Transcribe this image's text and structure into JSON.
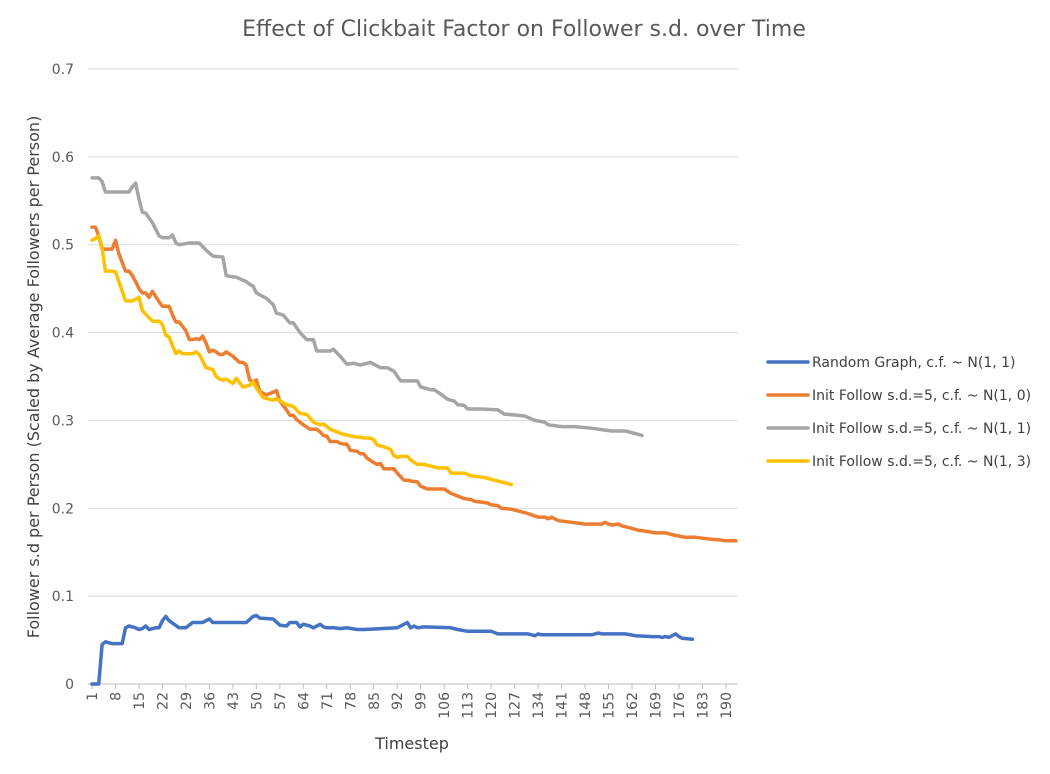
{
  "chart_data": {
    "type": "line",
    "title": "Effect of Clickbait Factor on Follower s.d. over Time",
    "xlabel": "Timestep",
    "ylabel": "Follower s.d per Person (Scaled by Average Followers per Person)",
    "xlim": [
      1,
      193
    ],
    "ylim": [
      0,
      0.7
    ],
    "yticks": [
      "0",
      "0.1",
      "0.2",
      "0.3",
      "0.4",
      "0.5",
      "0.6",
      "0.7"
    ],
    "xticks": [
      "1",
      "8",
      "15",
      "22",
      "29",
      "36",
      "43",
      "50",
      "57",
      "64",
      "71",
      "78",
      "85",
      "92",
      "99",
      "106",
      "113",
      "120",
      "127",
      "134",
      "141",
      "148",
      "155",
      "162",
      "169",
      "176",
      "183",
      "190"
    ],
    "grid": true,
    "legend_position": "right",
    "series": [
      {
        "name": "Random Graph, c.f. ~ N(1, 1)",
        "color": "#4472c4",
        "x": [
          1,
          3,
          4,
          5,
          7,
          8,
          10,
          11,
          12,
          14,
          15,
          16,
          17,
          18,
          20,
          21,
          22,
          23,
          24,
          27,
          29,
          31,
          34,
          35,
          36,
          37,
          47,
          49,
          50,
          51,
          55,
          57,
          59,
          60,
          62,
          63,
          64,
          66,
          67,
          69,
          70,
          71,
          73,
          75,
          77,
          80,
          82,
          92,
          95,
          96,
          97,
          98,
          100,
          108,
          110,
          113,
          120,
          122,
          131,
          133,
          134,
          135,
          150,
          152,
          153,
          160,
          163,
          168,
          170,
          171,
          172,
          173,
          174,
          175,
          176,
          177,
          180
        ],
        "values": [
          0,
          0,
          0.045,
          0.048,
          0.046,
          0.046,
          0.046,
          0.064,
          0.066,
          0.064,
          0.062,
          0.063,
          0.066,
          0.062,
          0.064,
          0.064,
          0.072,
          0.077,
          0.072,
          0.064,
          0.064,
          0.07,
          0.07,
          0.072,
          0.074,
          0.07,
          0.07,
          0.077,
          0.078,
          0.075,
          0.074,
          0.067,
          0.066,
          0.07,
          0.07,
          0.065,
          0.068,
          0.066,
          0.064,
          0.068,
          0.065,
          0.064,
          0.064,
          0.063,
          0.064,
          0.062,
          0.062,
          0.064,
          0.07,
          0.064,
          0.066,
          0.064,
          0.065,
          0.064,
          0.062,
          0.06,
          0.06,
          0.057,
          0.057,
          0.055,
          0.057,
          0.056,
          0.056,
          0.058,
          0.057,
          0.057,
          0.055,
          0.054,
          0.054,
          0.053,
          0.054,
          0.053,
          0.055,
          0.057,
          0.054,
          0.052,
          0.051
        ]
      },
      {
        "name": "Init Follow s.d.=5, c.f. ~ N(1, 0)",
        "color": "#ed7d31",
        "x": [
          1,
          2,
          3,
          4,
          6,
          7,
          8,
          9,
          11,
          12,
          13,
          14,
          15,
          16,
          17,
          18,
          19,
          21,
          22,
          24,
          25,
          26,
          27,
          29,
          30,
          31,
          32,
          33,
          34,
          35,
          36,
          37,
          38,
          39,
          40,
          41,
          43,
          45,
          46,
          47,
          48,
          49,
          50,
          51,
          52,
          53,
          55,
          56,
          57,
          58,
          59,
          60,
          61,
          62,
          64,
          66,
          68,
          69,
          70,
          71,
          72,
          74,
          75,
          76,
          77,
          78,
          80,
          81,
          82,
          83,
          85,
          86,
          87,
          88,
          91,
          92,
          94,
          95,
          96,
          98,
          99,
          101,
          103,
          106,
          108,
          110,
          112,
          114,
          115,
          117,
          119,
          120,
          122,
          123,
          126,
          128,
          131,
          134,
          136,
          137,
          138,
          140,
          144,
          146,
          148,
          150,
          152,
          153,
          154,
          155,
          156,
          158,
          159,
          161,
          164,
          166,
          169,
          172,
          175,
          178,
          181,
          183,
          185,
          188,
          190,
          193
        ],
        "values": [
          0.52,
          0.52,
          0.51,
          0.495,
          0.495,
          0.495,
          0.505,
          0.49,
          0.47,
          0.47,
          0.465,
          0.458,
          0.45,
          0.445,
          0.445,
          0.44,
          0.447,
          0.435,
          0.43,
          0.43,
          0.42,
          0.412,
          0.412,
          0.402,
          0.392,
          0.392,
          0.393,
          0.392,
          0.396,
          0.388,
          0.378,
          0.38,
          0.378,
          0.375,
          0.375,
          0.378,
          0.373,
          0.366,
          0.366,
          0.363,
          0.346,
          0.344,
          0.346,
          0.333,
          0.331,
          0.329,
          0.332,
          0.334,
          0.322,
          0.317,
          0.312,
          0.306,
          0.306,
          0.301,
          0.295,
          0.29,
          0.29,
          0.287,
          0.283,
          0.282,
          0.276,
          0.276,
          0.274,
          0.273,
          0.273,
          0.266,
          0.265,
          0.262,
          0.262,
          0.257,
          0.252,
          0.25,
          0.251,
          0.245,
          0.245,
          0.24,
          0.232,
          0.232,
          0.231,
          0.23,
          0.225,
          0.222,
          0.222,
          0.222,
          0.217,
          0.214,
          0.211,
          0.21,
          0.208,
          0.207,
          0.206,
          0.204,
          0.203,
          0.2,
          0.199,
          0.197,
          0.194,
          0.19,
          0.19,
          0.188,
          0.19,
          0.186,
          0.184,
          0.183,
          0.182,
          0.182,
          0.182,
          0.182,
          0.184,
          0.182,
          0.181,
          0.182,
          0.18,
          0.178,
          0.175,
          0.174,
          0.172,
          0.172,
          0.169,
          0.167,
          0.167,
          0.166,
          0.165,
          0.164,
          0.163,
          0.163
        ]
      },
      {
        "name": "Init Follow s.d.=5, c.f. ~ N(1, 1)",
        "color": "#a5a5a5",
        "x": [
          1,
          2,
          3,
          4,
          5,
          8,
          9,
          12,
          13,
          14,
          15,
          16,
          17,
          19,
          21,
          22,
          24,
          25,
          26,
          27,
          30,
          33,
          35,
          37,
          40,
          41,
          42,
          44,
          47,
          48,
          49,
          50,
          52,
          53,
          55,
          56,
          58,
          60,
          61,
          63,
          65,
          67,
          68,
          72,
          73,
          75,
          77,
          79,
          81,
          84,
          87,
          89,
          91,
          93,
          98,
          99,
          102,
          103,
          105,
          107,
          109,
          110,
          112,
          113,
          117,
          122,
          124,
          125,
          130,
          133,
          136,
          137,
          141,
          145,
          150,
          154,
          156,
          160,
          162,
          163,
          165
        ],
        "values": [
          0.576,
          0.576,
          0.576,
          0.572,
          0.56,
          0.56,
          0.56,
          0.56,
          0.566,
          0.57,
          0.552,
          0.537,
          0.536,
          0.525,
          0.51,
          0.508,
          0.508,
          0.511,
          0.502,
          0.5,
          0.502,
          0.502,
          0.494,
          0.487,
          0.486,
          0.465,
          0.464,
          0.463,
          0.458,
          0.455,
          0.453,
          0.445,
          0.441,
          0.439,
          0.432,
          0.422,
          0.42,
          0.411,
          0.411,
          0.4,
          0.392,
          0.392,
          0.379,
          0.379,
          0.381,
          0.373,
          0.364,
          0.365,
          0.363,
          0.366,
          0.36,
          0.36,
          0.356,
          0.345,
          0.345,
          0.338,
          0.335,
          0.335,
          0.33,
          0.324,
          0.322,
          0.318,
          0.317,
          0.313,
          0.313,
          0.312,
          0.307,
          0.307,
          0.305,
          0.3,
          0.298,
          0.295,
          0.293,
          0.293,
          0.291,
          0.289,
          0.288,
          0.288,
          0.286,
          0.285,
          0.283
        ]
      },
      {
        "name": "Init Follow s.d.=5, c.f. ~ N(1, 3)",
        "color": "#ffc000",
        "x": [
          1,
          2,
          3,
          4,
          5,
          7,
          8,
          10,
          11,
          13,
          15,
          16,
          19,
          21,
          22,
          23,
          24,
          25,
          26,
          27,
          28,
          30,
          31,
          32,
          33,
          35,
          36,
          37,
          38,
          39,
          40,
          41,
          43,
          44,
          46,
          48,
          49,
          50,
          52,
          54,
          55,
          56,
          58,
          59,
          61,
          63,
          65,
          67,
          69,
          70,
          72,
          74,
          76,
          80,
          81,
          82,
          84,
          85,
          86,
          88,
          90,
          91,
          92,
          93,
          95,
          96,
          98,
          100,
          102,
          104,
          107,
          108,
          112,
          114,
          116,
          118,
          121,
          123,
          126
        ],
        "values": [
          0.505,
          0.507,
          0.51,
          0.496,
          0.47,
          0.47,
          0.469,
          0.447,
          0.436,
          0.436,
          0.44,
          0.425,
          0.413,
          0.413,
          0.409,
          0.397,
          0.395,
          0.385,
          0.376,
          0.379,
          0.376,
          0.376,
          0.376,
          0.378,
          0.375,
          0.36,
          0.359,
          0.358,
          0.35,
          0.347,
          0.346,
          0.347,
          0.342,
          0.348,
          0.338,
          0.34,
          0.344,
          0.337,
          0.326,
          0.324,
          0.323,
          0.325,
          0.32,
          0.318,
          0.316,
          0.308,
          0.307,
          0.298,
          0.295,
          0.296,
          0.29,
          0.287,
          0.284,
          0.281,
          0.281,
          0.28,
          0.28,
          0.278,
          0.272,
          0.27,
          0.267,
          0.26,
          0.258,
          0.259,
          0.259,
          0.255,
          0.25,
          0.25,
          0.248,
          0.246,
          0.246,
          0.24,
          0.24,
          0.237,
          0.236,
          0.235,
          0.232,
          0.23,
          0.227
        ]
      }
    ]
  }
}
